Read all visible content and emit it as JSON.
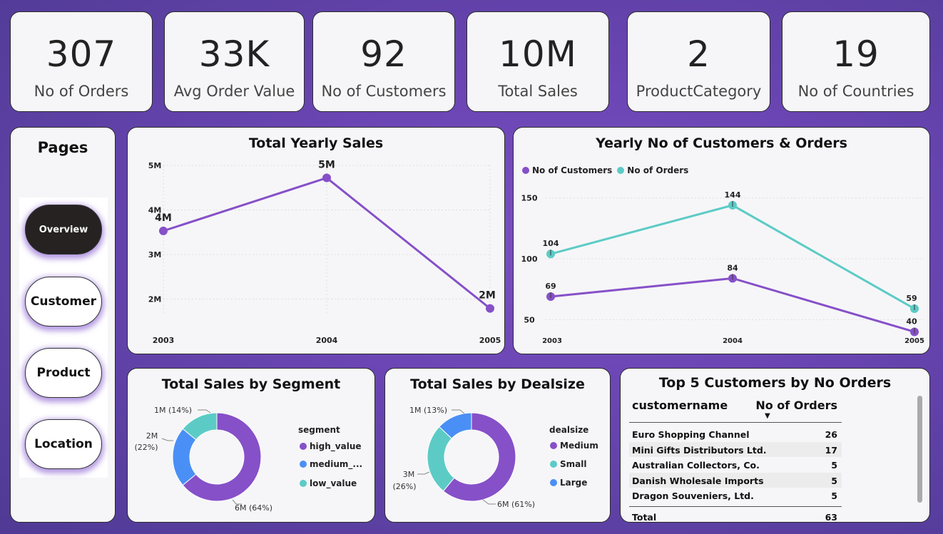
{
  "kpis": [
    {
      "value": "307",
      "label": "No of Orders"
    },
    {
      "value": "33K",
      "label": "Avg Order Value"
    },
    {
      "value": "92",
      "label": "No of Customers"
    },
    {
      "value": "10M",
      "label": "Total Sales"
    },
    {
      "value": "2",
      "label": "ProductCategory"
    },
    {
      "value": "19",
      "label": "No of Countries"
    }
  ],
  "pages": {
    "title": "Pages",
    "items": [
      "Overview",
      "Customer",
      "Product",
      "Location"
    ],
    "active": "Overview"
  },
  "colors": {
    "purple": "#8650c8",
    "teal": "#5ccbc6",
    "blue": "#4a8ff5"
  },
  "yearly_sales": {
    "title": "Total Yearly Sales",
    "y_ticks": [
      "5M",
      "4M",
      "3M",
      "2M"
    ],
    "x_ticks": [
      "2003",
      "2004",
      "2005"
    ],
    "point_labels": [
      "4M",
      "5M",
      "2M"
    ]
  },
  "yearly_customers_orders": {
    "title": "Yearly No of Customers & Orders",
    "legend": [
      "No of Customers",
      "No of Orders"
    ],
    "y_ticks": [
      "150",
      "100",
      "50"
    ],
    "x_ticks": [
      "2003",
      "2004",
      "2005"
    ],
    "customers_labels": [
      "69",
      "84",
      "40"
    ],
    "orders_labels": [
      "104",
      "144",
      "59"
    ]
  },
  "segment": {
    "title": "Total Sales by Segment",
    "legend_title": "segment",
    "legend": [
      "high_value",
      "medium_...",
      "low_value"
    ],
    "slice_labels": [
      "6M (64%)",
      "2M",
      "(22%)",
      "1M (14%)"
    ]
  },
  "dealsize": {
    "title": "Total Sales by Dealsize",
    "legend_title": "dealsize",
    "legend": [
      "Medium",
      "Small",
      "Large"
    ],
    "slice_labels": [
      "6M (61%)",
      "3M",
      "(26%)",
      "1M (13%)"
    ]
  },
  "top_customers": {
    "title": "Top 5 Customers by No Orders",
    "headers": [
      "customername",
      "No of Orders"
    ],
    "rows": [
      {
        "name": "Euro Shopping Channel",
        "orders": "26"
      },
      {
        "name": "Mini Gifts Distributors Ltd.",
        "orders": "17"
      },
      {
        "name": "Australian Collectors, Co.",
        "orders": "5"
      },
      {
        "name": "Danish Wholesale Imports",
        "orders": "5"
      },
      {
        "name": "Dragon Souveniers, Ltd.",
        "orders": "5"
      }
    ],
    "total_label": "Total",
    "total_value": "63"
  },
  "chart_data": [
    {
      "type": "line",
      "title": "Total Yearly Sales",
      "x": [
        2003,
        2004,
        2005
      ],
      "series": [
        {
          "values": [
            3530000,
            4720000,
            1790000
          ]
        }
      ],
      "ylim": [
        1800000,
        5000000
      ],
      "data_labels": [
        "4M",
        "5M",
        "2M"
      ],
      "grid": true
    },
    {
      "type": "line",
      "title": "Yearly No of Customers & Orders",
      "x": [
        2003,
        2004,
        2005
      ],
      "series": [
        {
          "name": "No of Customers",
          "values": [
            69,
            84,
            40
          ]
        },
        {
          "name": "No of Orders",
          "values": [
            104,
            144,
            59
          ]
        }
      ],
      "ylim": [
        35,
        158
      ],
      "legend": "top-left",
      "grid": true
    },
    {
      "type": "pie",
      "title": "Total Sales by Segment",
      "categories": [
        "high_value",
        "medium_...",
        "low_value"
      ],
      "values": [
        64,
        22,
        14
      ],
      "value_labels": [
        "6M (64%)",
        "2M (22%)",
        "1M (14%)"
      ],
      "legend": "right"
    },
    {
      "type": "pie",
      "title": "Total Sales by Dealsize",
      "categories": [
        "Medium",
        "Small",
        "Large"
      ],
      "values": [
        61,
        26,
        13
      ],
      "value_labels": [
        "6M (61%)",
        "3M (26%)",
        "1M (13%)"
      ],
      "legend": "right"
    }
  ]
}
